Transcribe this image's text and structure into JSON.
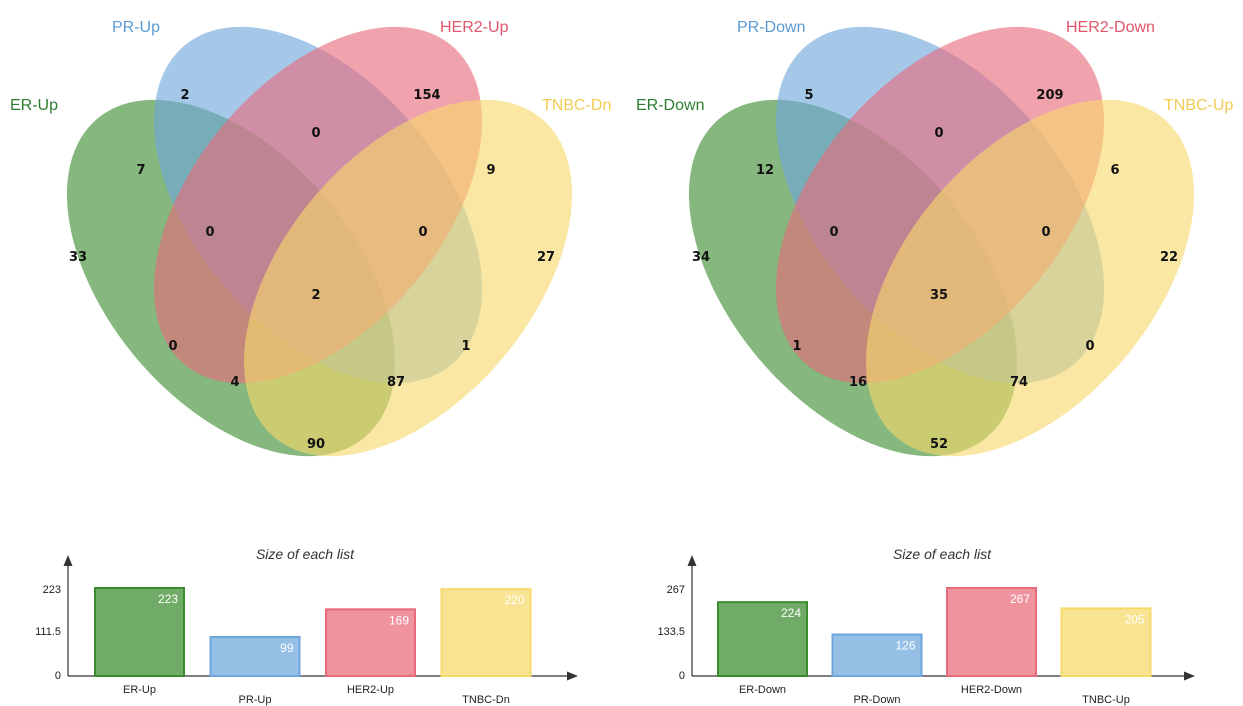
{
  "panels": [
    {
      "sets": [
        {
          "label": "ER-Up",
          "color": "#3a8a2e",
          "label_color": "#2e7d32"
        },
        {
          "label": "PR-Up",
          "color": "#6ea6dc",
          "label_color": "#5b9bd5"
        },
        {
          "label": "HER2-Up",
          "color": "#e96a7a",
          "label_color": "#e0566a"
        },
        {
          "label": "TNBC-Dn",
          "color": "#f7d96a",
          "label_color": "#f2cc55"
        }
      ],
      "regions": {
        "pr_only": "2",
        "her2_only": "154",
        "er_pr": "7",
        "pr_her2": "0",
        "her2_tnbc": "9",
        "er_only": "33",
        "er_pr_her2": "0",
        "pr_her2_tnbc": "0",
        "tnbc_only": "27",
        "all": "2",
        "er_her2": "0",
        "pr_tnbc": "1",
        "er_her2_tnbc": "4",
        "er_pr_tnbc": "87",
        "er_tnbc": "90"
      },
      "bar_title": "Size of each list",
      "ticks": [
        "223",
        "111.5",
        "0"
      ],
      "chart_data": {
        "type": "bar",
        "title": "Size of each list",
        "categories": [
          "ER-Up",
          "PR-Up",
          "HER2-Up",
          "TNBC-Dn"
        ],
        "values": [
          223,
          99,
          169,
          220
        ],
        "ylim": [
          0,
          223
        ]
      }
    },
    {
      "sets": [
        {
          "label": "ER-Down",
          "color": "#3a8a2e",
          "label_color": "#2e7d32"
        },
        {
          "label": "PR-Down",
          "color": "#6ea6dc",
          "label_color": "#5b9bd5"
        },
        {
          "label": "HER2-Down",
          "color": "#e96a7a",
          "label_color": "#e0566a"
        },
        {
          "label": "TNBC-Up",
          "color": "#f7d96a",
          "label_color": "#f2cc55"
        }
      ],
      "regions": {
        "pr_only": "5",
        "her2_only": "209",
        "er_pr": "12",
        "pr_her2": "0",
        "her2_tnbc": "6",
        "er_only": "34",
        "er_pr_her2": "0",
        "pr_her2_tnbc": "0",
        "tnbc_only": "22",
        "all": "35",
        "er_her2": "1",
        "pr_tnbc": "0",
        "er_her2_tnbc": "16",
        "er_pr_tnbc": "74",
        "er_tnbc": "52"
      },
      "bar_title": "Size of each list",
      "ticks": [
        "267",
        "133.5",
        "0"
      ],
      "chart_data": {
        "type": "bar",
        "title": "Size of each list",
        "categories": [
          "ER-Down",
          "PR-Down",
          "HER2-Down",
          "TNBC-Up"
        ],
        "values": [
          224,
          126,
          267,
          205
        ],
        "ylim": [
          0,
          267
        ]
      }
    }
  ]
}
